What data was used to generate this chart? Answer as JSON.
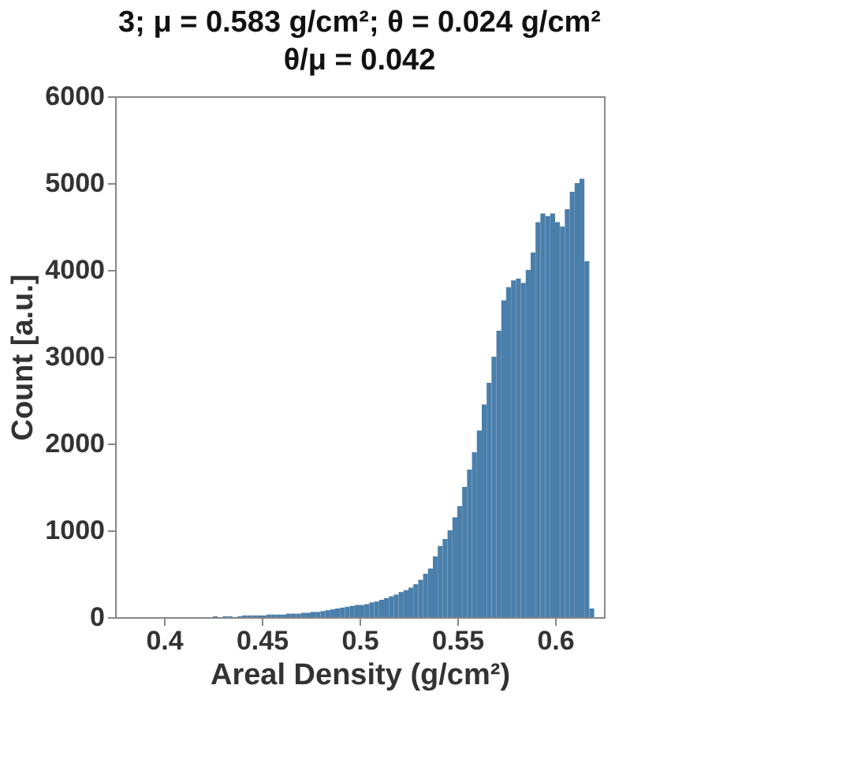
{
  "chart_data": {
    "type": "histogram",
    "title": "3; μ = 0.583 g/cm²; θ = 0.024 g/cm²\nθ/μ = 0.042",
    "xlabel": "Areal Density (g/cm²)",
    "ylabel": "Count [a.u.]",
    "bins": [
      0.42,
      0.4225,
      0.425,
      0.4275,
      0.43,
      0.4325,
      0.435,
      0.4375,
      0.44,
      0.4425,
      0.445,
      0.4475,
      0.45,
      0.4525,
      0.455,
      0.4575,
      0.46,
      0.4625,
      0.465,
      0.4675,
      0.47,
      0.4725,
      0.475,
      0.4775,
      0.48,
      0.4825,
      0.485,
      0.4875,
      0.49,
      0.4925,
      0.495,
      0.4975,
      0.5,
      0.5025,
      0.505,
      0.5075,
      0.51,
      0.5125,
      0.515,
      0.5175,
      0.52,
      0.5225,
      0.525,
      0.5275,
      0.53,
      0.5325,
      0.535,
      0.5375,
      0.54,
      0.5425,
      0.545,
      0.5475,
      0.55,
      0.5525,
      0.555,
      0.5575,
      0.56,
      0.5625,
      0.565,
      0.5675,
      0.57,
      0.5725,
      0.575,
      0.5775,
      0.58,
      0.5825,
      0.585,
      0.5875,
      0.59,
      0.5925,
      0.595,
      0.5975,
      0.6,
      0.6025,
      0.605,
      0.6075,
      0.61,
      0.6125,
      0.615,
      0.6175,
      0.62
    ],
    "values": [
      0,
      0,
      10,
      0,
      10,
      10,
      0,
      10,
      20,
      20,
      20,
      20,
      20,
      30,
      30,
      30,
      30,
      40,
      40,
      40,
      50,
      50,
      60,
      60,
      70,
      80,
      90,
      100,
      110,
      120,
      130,
      140,
      140,
      150,
      170,
      180,
      200,
      220,
      240,
      260,
      290,
      310,
      340,
      380,
      430,
      500,
      560,
      700,
      820,
      900,
      1000,
      1150,
      1280,
      1500,
      1700,
      1900,
      2150,
      2450,
      2700,
      3000,
      3300,
      3650,
      3800,
      3880,
      3900,
      3850,
      4000,
      4200,
      4550,
      4650,
      4620,
      4650,
      4550,
      4500,
      4700,
      4900,
      5000,
      5050,
      4100,
      100
    ],
    "color": "#4a7fab",
    "xlim": [
      0.375,
      0.625
    ],
    "xticks": [
      0.4,
      0.45,
      0.5,
      0.55,
      0.6
    ],
    "ylim": [
      0,
      6000
    ],
    "yticks": [
      0,
      1000,
      2000,
      3000,
      4000,
      5000,
      6000
    ],
    "grid": false
  }
}
